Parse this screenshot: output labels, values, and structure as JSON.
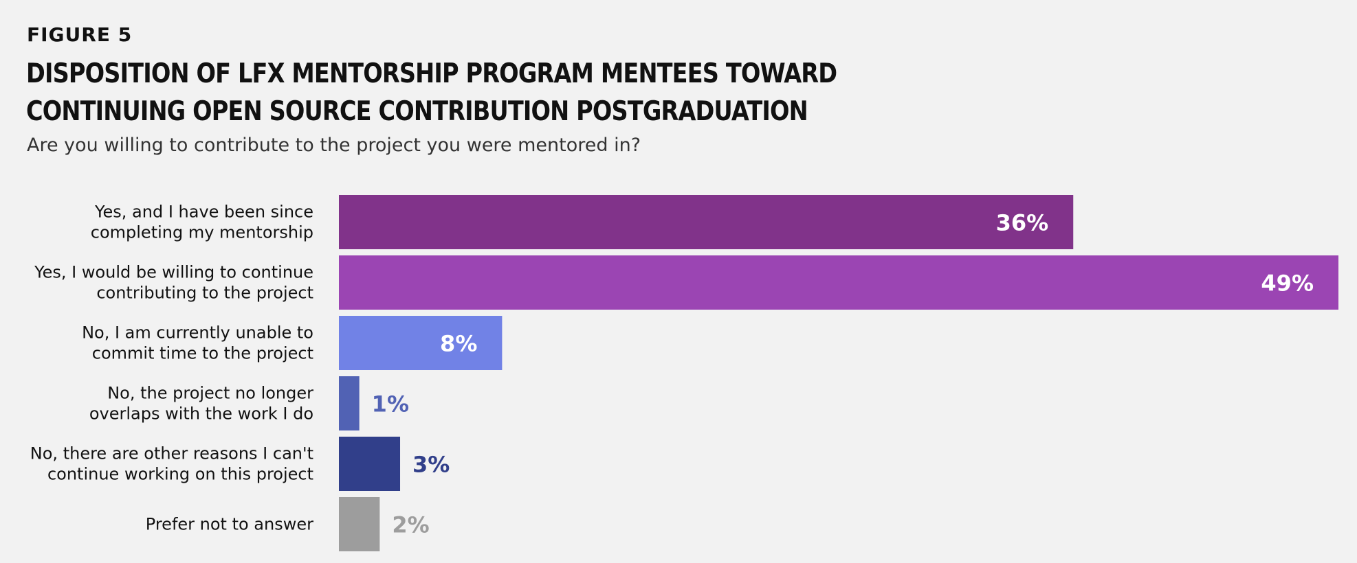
{
  "figure_label": "FIGURE 5",
  "chart_data": {
    "type": "bar",
    "orientation": "horizontal",
    "title_lines": [
      "DISPOSITION OF LFX MENTORSHIP PROGRAM MENTEES TOWARD",
      "CONTINUING OPEN SOURCE CONTRIBUTION POSTGRADUATION"
    ],
    "subtitle": "Are you willing to contribute to the project you were mentored in?",
    "categories": [
      [
        "Yes, and I have been since",
        "completing my mentorship"
      ],
      [
        "Yes, I would be willing to continue",
        "contributing to the project"
      ],
      [
        "No, I am currently unable to",
        "commit time to the project"
      ],
      [
        "No, the project no longer",
        "overlaps with the work I do"
      ],
      [
        "No, there are other reasons I can't",
        "continue working on this project"
      ],
      [
        "Prefer not to answer"
      ]
    ],
    "values": [
      36,
      49,
      8,
      1,
      3,
      2
    ],
    "value_labels": [
      "36%",
      "49%",
      "8%",
      "1%",
      "3%",
      "2%"
    ],
    "colors": [
      "#81338a",
      "#9b45b3",
      "#7182e6",
      "#5162b4",
      "#313f8a",
      "#9d9d9d"
    ],
    "label_inside": [
      true,
      true,
      true,
      false,
      false,
      false
    ],
    "xlim": [
      0,
      49
    ],
    "grid": false,
    "legend": "none"
  }
}
